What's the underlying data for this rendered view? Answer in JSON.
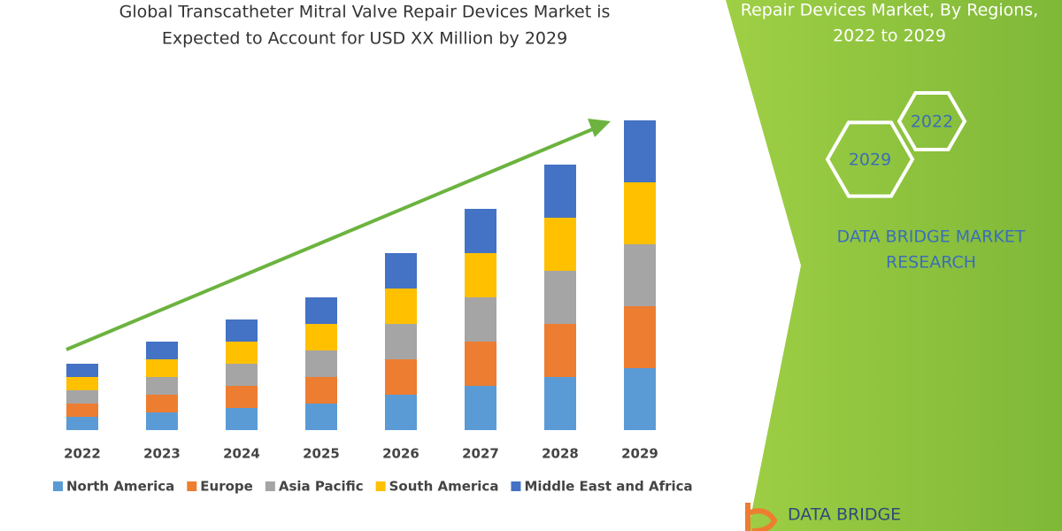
{
  "chart_data": {
    "type": "stacked-bar",
    "title": [
      "Global Transcatheter Mitral Valve Repair Devices Market is",
      "Expected to Account for USD XX Million by 2029"
    ],
    "categories": [
      "2022",
      "2023",
      "2024",
      "2025",
      "2026",
      "2027",
      "2028",
      "2029"
    ],
    "series": [
      {
        "name": "North America",
        "color": "#5b9bd5",
        "values": [
          15,
          20,
          25,
          30,
          40,
          50,
          60,
          70
        ]
      },
      {
        "name": "Europe",
        "color": "#ed7d31",
        "values": [
          15,
          20,
          25,
          30,
          40,
          50,
          60,
          70
        ]
      },
      {
        "name": "Asia Pacific",
        "color": "#a5a5a5",
        "values": [
          15,
          20,
          25,
          30,
          40,
          50,
          60,
          70
        ]
      },
      {
        "name": "South America",
        "color": "#ffc000",
        "values": [
          15,
          20,
          25,
          30,
          40,
          50,
          60,
          70
        ]
      },
      {
        "name": "Middle East and Africa",
        "color": "#4472c4",
        "values": [
          15,
          20,
          25,
          30,
          40,
          50,
          60,
          70
        ]
      }
    ]
  },
  "panel": {
    "title": [
      "Repair Devices Market, By Regions,",
      "2022 to 2029"
    ],
    "hexagons": [
      "2029",
      "2022"
    ],
    "brand": [
      "DATA BRIDGE MARKET",
      "RESEARCH"
    ],
    "logo": "DATA BRIDGE"
  }
}
